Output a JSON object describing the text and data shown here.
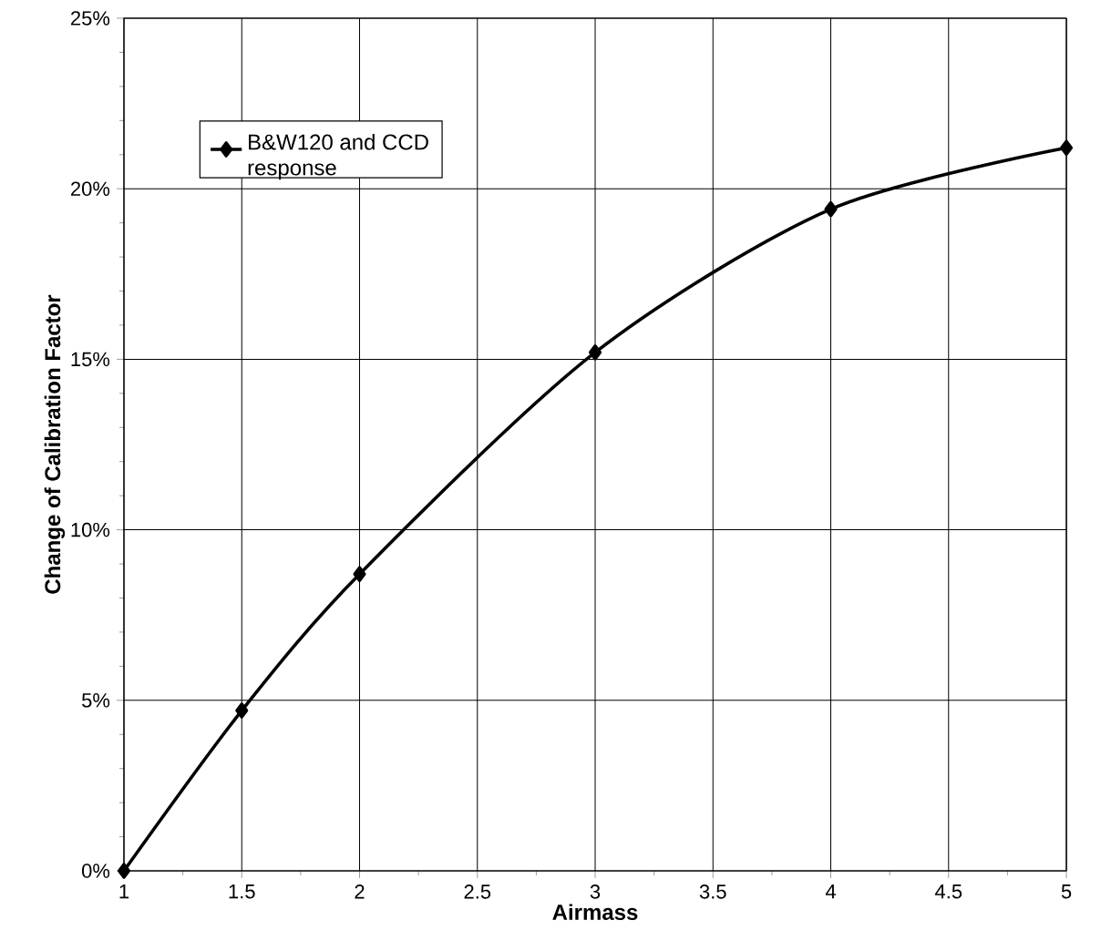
{
  "chart_data": {
    "type": "line",
    "xlabel": "Airmass",
    "ylabel": "Change of Calibration Factor",
    "x": [
      1,
      1.5,
      2,
      3,
      4,
      5
    ],
    "series": [
      {
        "name": "B&W120 and CCD response",
        "color": "#000000",
        "values": [
          0,
          4.7,
          8.7,
          15.2,
          19.4,
          21.2
        ]
      }
    ],
    "xlim": [
      1,
      5
    ],
    "ylim": [
      0,
      25
    ],
    "xticks": [
      1,
      1.5,
      2,
      2.5,
      3,
      3.5,
      4,
      4.5,
      5
    ],
    "yticks": [
      {
        "value": 0,
        "label": "0%"
      },
      {
        "value": 5,
        "label": "5%"
      },
      {
        "value": 10,
        "label": "10%"
      },
      {
        "value": 15,
        "label": "15%"
      },
      {
        "value": 20,
        "label": "20%"
      },
      {
        "value": 25,
        "label": "25%"
      }
    ],
    "grid": true,
    "legend": "top left",
    "marker": "diamond",
    "line_style": "solid"
  }
}
